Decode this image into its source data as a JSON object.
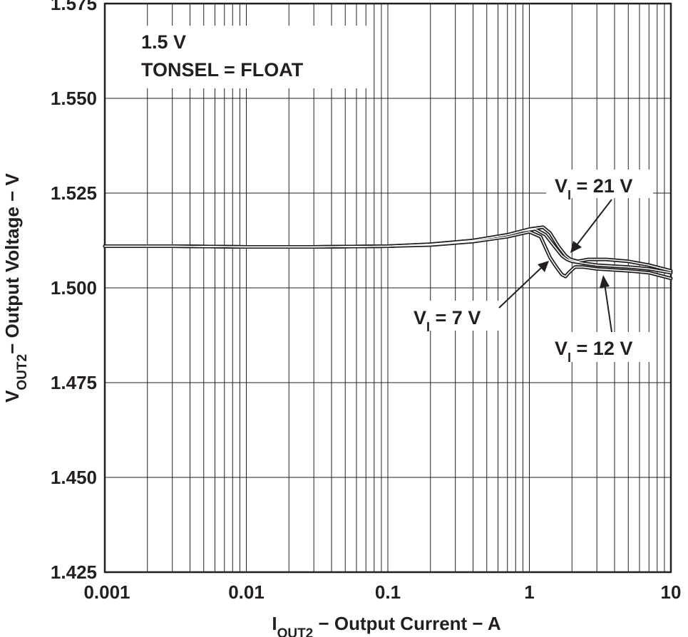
{
  "chart_data": {
    "type": "line",
    "x_scale": "log",
    "xlim": [
      0.001,
      10
    ],
    "ylim": [
      1.425,
      1.575
    ],
    "grid": true,
    "x_ticks": [
      {
        "value": 0.001,
        "label": "0.001"
      },
      {
        "value": 0.01,
        "label": "0.01"
      },
      {
        "value": 0.1,
        "label": "0.1"
      },
      {
        "value": 1,
        "label": "1"
      },
      {
        "value": 10,
        "label": "10"
      }
    ],
    "y_ticks": [
      {
        "value": 1.425,
        "label": "1.425"
      },
      {
        "value": 1.45,
        "label": "1.450"
      },
      {
        "value": 1.475,
        "label": "1.475"
      },
      {
        "value": 1.5,
        "label": "1.500"
      },
      {
        "value": 1.525,
        "label": "1.525"
      },
      {
        "value": 1.55,
        "label": "1.550"
      },
      {
        "value": 1.575,
        "label": "1.575"
      }
    ],
    "xlabel": {
      "main": "I",
      "sub": "OUT2",
      "rest": " − Output Current − A"
    },
    "ylabel": {
      "main": "V",
      "sub": "OUT2",
      "rest": "− Output Voltage − V"
    },
    "conditions": [
      "1.5 V",
      "TONSEL = FLOAT"
    ],
    "series": [
      {
        "name": "VI = 21 V",
        "label_main": "V",
        "label_sub": "I",
        "label_rest": " = 21 V",
        "x": [
          0.001,
          0.003,
          0.01,
          0.03,
          0.1,
          0.2,
          0.4,
          0.7,
          1.0,
          1.25,
          1.4,
          1.6,
          1.8,
          1.95,
          2.2,
          2.6,
          3.5,
          5,
          7,
          10
        ],
        "y": [
          1.511,
          1.511,
          1.5108,
          1.5108,
          1.511,
          1.5115,
          1.5125,
          1.514,
          1.5155,
          1.516,
          1.5145,
          1.511,
          1.5085,
          1.5075,
          1.507,
          1.5075,
          1.5075,
          1.507,
          1.506,
          1.5045
        ]
      },
      {
        "name": "VI = 12 V",
        "label_main": "V",
        "label_sub": "I",
        "label_rest": " = 12 V",
        "x": [
          0.001,
          0.003,
          0.01,
          0.03,
          0.1,
          0.2,
          0.4,
          0.7,
          0.9,
          1.1,
          1.3,
          1.5,
          1.7,
          1.85,
          2.0,
          2.4,
          3.0,
          5,
          7,
          10
        ],
        "y": [
          1.511,
          1.511,
          1.5108,
          1.5108,
          1.511,
          1.5115,
          1.5125,
          1.514,
          1.515,
          1.5155,
          1.514,
          1.511,
          1.5085,
          1.5075,
          1.507,
          1.5065,
          1.506,
          1.5055,
          1.505,
          1.504
        ]
      },
      {
        "name": "VI = 7 V",
        "label_main": "V",
        "label_sub": "I",
        "label_rest": " = 7 V",
        "x": [
          0.001,
          0.003,
          0.01,
          0.03,
          0.1,
          0.2,
          0.4,
          0.7,
          1.0,
          1.2,
          1.4,
          1.55,
          1.7,
          1.8,
          1.9,
          2.1,
          2.4,
          3,
          5,
          7,
          10
        ],
        "y": [
          1.511,
          1.511,
          1.5108,
          1.5108,
          1.511,
          1.5113,
          1.5122,
          1.5135,
          1.5148,
          1.5135,
          1.508,
          1.5055,
          1.5035,
          1.503,
          1.504,
          1.5055,
          1.5055,
          1.505,
          1.5045,
          1.504,
          1.5025
        ]
      }
    ]
  }
}
